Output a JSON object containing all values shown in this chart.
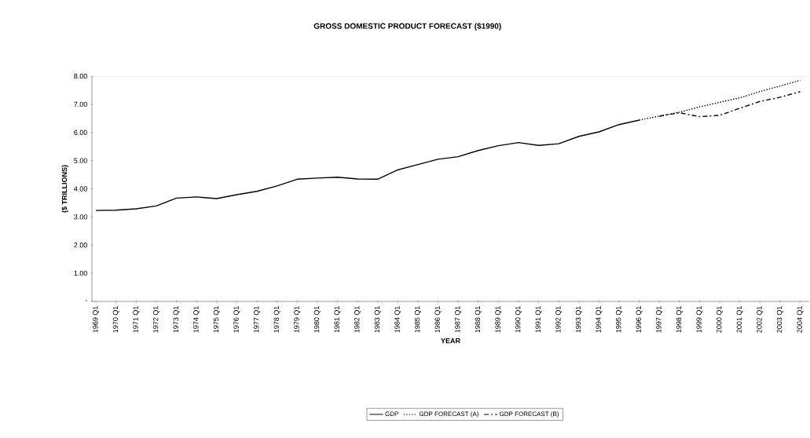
{
  "chart_data": {
    "type": "line",
    "title": "GROSS DOMESTIC PRODUCT FORECAST ($1990)",
    "xlabel": "YEAR",
    "ylabel": "($ TRILLIONS)",
    "categories": [
      "1969 Q1",
      "1970 Q1",
      "1971 Q1",
      "1972 Q1",
      "1973 Q1",
      "1974 Q1",
      "1975 Q1",
      "1976 Q1",
      "1977 Q1",
      "1978 Q1",
      "1979 Q1",
      "1980 Q1",
      "1981 Q1",
      "1982 Q1",
      "1983 Q1",
      "1984 Q1",
      "1985 Q1",
      "1986 Q1",
      "1987 Q1",
      "1988 Q1",
      "1989 Q1",
      "1990 Q1",
      "1991 Q1",
      "1992 Q1",
      "1993 Q1",
      "1994 Q1",
      "1995 Q1",
      "1996 Q1",
      "1997 Q1",
      "1998 Q1",
      "1999 Q1",
      "2000 Q1",
      "2001 Q1",
      "2002 Q1",
      "2003 Q1",
      "2004 Q1"
    ],
    "series": [
      {
        "name": "GDP",
        "color": "#000000",
        "line_style": "solid",
        "values": [
          3.23,
          3.24,
          3.29,
          3.39,
          3.67,
          3.71,
          3.65,
          3.79,
          3.91,
          4.1,
          4.34,
          4.38,
          4.41,
          4.35,
          4.34,
          4.67,
          4.86,
          5.05,
          5.14,
          5.36,
          5.53,
          5.64,
          5.54,
          5.6,
          5.86,
          6.02,
          6.28,
          6.44,
          null,
          null,
          null,
          null,
          null,
          null,
          null,
          null
        ]
      },
      {
        "name": "GDP FORECAST (A)",
        "color": "#000000",
        "line_style": "dotted",
        "values": [
          null,
          null,
          null,
          null,
          null,
          null,
          null,
          null,
          null,
          null,
          null,
          null,
          null,
          null,
          null,
          null,
          null,
          null,
          null,
          null,
          null,
          null,
          null,
          null,
          null,
          null,
          null,
          6.44,
          6.58,
          6.72,
          6.91,
          7.07,
          7.23,
          7.45,
          7.65,
          7.85
        ]
      },
      {
        "name": "GDP FORECAST (B)",
        "color": "#000000",
        "line_style": "dashdot",
        "values": [
          null,
          null,
          null,
          null,
          null,
          null,
          null,
          null,
          null,
          null,
          null,
          null,
          null,
          null,
          null,
          null,
          null,
          null,
          null,
          null,
          null,
          null,
          null,
          null,
          null,
          null,
          null,
          null,
          6.58,
          6.7,
          6.56,
          6.61,
          6.86,
          7.1,
          7.25,
          7.45
        ]
      }
    ],
    "ylim": [
      0,
      8
    ],
    "yticks": [
      {
        "value": 0,
        "label": "-"
      },
      {
        "value": 1,
        "label": "1.00"
      },
      {
        "value": 2,
        "label": "2.00"
      },
      {
        "value": 3,
        "label": "3.00"
      },
      {
        "value": 4,
        "label": "4.00"
      },
      {
        "value": 5,
        "label": "5.00"
      },
      {
        "value": 6,
        "label": "6.00"
      },
      {
        "value": 7,
        "label": "7.00"
      },
      {
        "value": 8,
        "label": "8.00"
      }
    ],
    "legend": "bottom",
    "grid": false
  }
}
